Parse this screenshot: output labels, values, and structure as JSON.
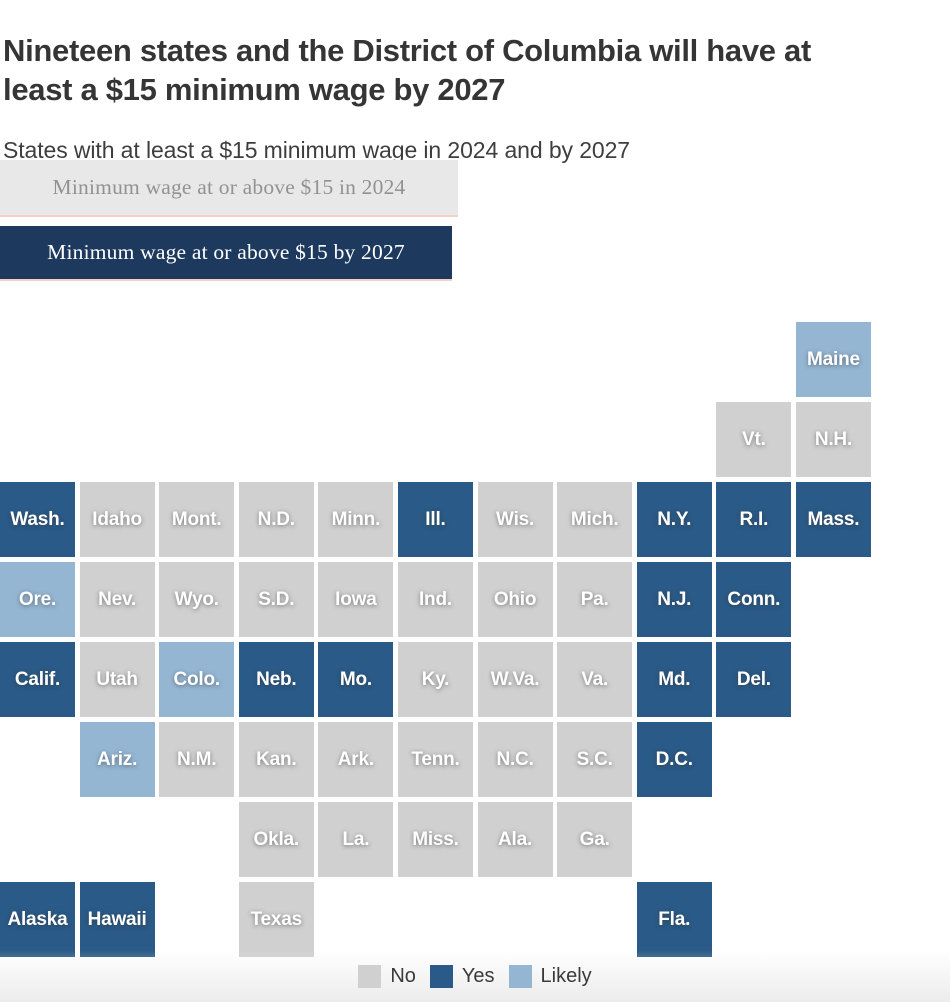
{
  "title": "Nineteen states and the District of Columbia will have at least a $15 minimum wage by 2027",
  "subtitle": "States with at least a $15 minimum wage in 2024 and by 2027",
  "toggles": [
    {
      "label": "Minimum wage at or above $15 in 2024",
      "state": "inactive"
    },
    {
      "label": "Minimum wage at or above $15 by 2027",
      "state": "active"
    }
  ],
  "colors": {
    "no": "#d0d0d0",
    "yes": "#2a5a87",
    "likely": "#94b6d3",
    "banner_active": "#1d3a5e",
    "banner_inactive": "#e8e8e8",
    "banner_underline": "#f4d0ca"
  },
  "legend": [
    {
      "label": "No",
      "status": "no"
    },
    {
      "label": "Yes",
      "status": "yes"
    },
    {
      "label": "Likely",
      "status": "likely"
    }
  ],
  "chart_data": {
    "type": "heatmap",
    "subtype": "state-tile-grid-map",
    "title": "Nineteen states and the District of Columbia will have at least a $15 minimum wage by 2027",
    "legend_position": "bottom-center",
    "status_values": [
      "no",
      "yes",
      "likely"
    ],
    "tiles": [
      {
        "label": "Maine",
        "col": 11,
        "row": 1,
        "status": "likely"
      },
      {
        "label": "Vt.",
        "col": 10,
        "row": 2,
        "status": "no"
      },
      {
        "label": "N.H.",
        "col": 11,
        "row": 2,
        "status": "no"
      },
      {
        "label": "Wash.",
        "col": 1,
        "row": 3,
        "status": "yes"
      },
      {
        "label": "Idaho",
        "col": 2,
        "row": 3,
        "status": "no"
      },
      {
        "label": "Mont.",
        "col": 3,
        "row": 3,
        "status": "no"
      },
      {
        "label": "N.D.",
        "col": 4,
        "row": 3,
        "status": "no"
      },
      {
        "label": "Minn.",
        "col": 5,
        "row": 3,
        "status": "no"
      },
      {
        "label": "Ill.",
        "col": 6,
        "row": 3,
        "status": "yes"
      },
      {
        "label": "Wis.",
        "col": 7,
        "row": 3,
        "status": "no"
      },
      {
        "label": "Mich.",
        "col": 8,
        "row": 3,
        "status": "no"
      },
      {
        "label": "N.Y.",
        "col": 9,
        "row": 3,
        "status": "yes"
      },
      {
        "label": "R.I.",
        "col": 10,
        "row": 3,
        "status": "yes"
      },
      {
        "label": "Mass.",
        "col": 11,
        "row": 3,
        "status": "yes"
      },
      {
        "label": "Ore.",
        "col": 1,
        "row": 4,
        "status": "likely"
      },
      {
        "label": "Nev.",
        "col": 2,
        "row": 4,
        "status": "no"
      },
      {
        "label": "Wyo.",
        "col": 3,
        "row": 4,
        "status": "no"
      },
      {
        "label": "S.D.",
        "col": 4,
        "row": 4,
        "status": "no"
      },
      {
        "label": "Iowa",
        "col": 5,
        "row": 4,
        "status": "no"
      },
      {
        "label": "Ind.",
        "col": 6,
        "row": 4,
        "status": "no"
      },
      {
        "label": "Ohio",
        "col": 7,
        "row": 4,
        "status": "no"
      },
      {
        "label": "Pa.",
        "col": 8,
        "row": 4,
        "status": "no"
      },
      {
        "label": "N.J.",
        "col": 9,
        "row": 4,
        "status": "yes"
      },
      {
        "label": "Conn.",
        "col": 10,
        "row": 4,
        "status": "yes"
      },
      {
        "label": "Calif.",
        "col": 1,
        "row": 5,
        "status": "yes"
      },
      {
        "label": "Utah",
        "col": 2,
        "row": 5,
        "status": "no"
      },
      {
        "label": "Colo.",
        "col": 3,
        "row": 5,
        "status": "likely"
      },
      {
        "label": "Neb.",
        "col": 4,
        "row": 5,
        "status": "yes"
      },
      {
        "label": "Mo.",
        "col": 5,
        "row": 5,
        "status": "yes"
      },
      {
        "label": "Ky.",
        "col": 6,
        "row": 5,
        "status": "no"
      },
      {
        "label": "W.Va.",
        "col": 7,
        "row": 5,
        "status": "no"
      },
      {
        "label": "Va.",
        "col": 8,
        "row": 5,
        "status": "no"
      },
      {
        "label": "Md.",
        "col": 9,
        "row": 5,
        "status": "yes"
      },
      {
        "label": "Del.",
        "col": 10,
        "row": 5,
        "status": "yes"
      },
      {
        "label": "Ariz.",
        "col": 2,
        "row": 6,
        "status": "likely"
      },
      {
        "label": "N.M.",
        "col": 3,
        "row": 6,
        "status": "no"
      },
      {
        "label": "Kan.",
        "col": 4,
        "row": 6,
        "status": "no"
      },
      {
        "label": "Ark.",
        "col": 5,
        "row": 6,
        "status": "no"
      },
      {
        "label": "Tenn.",
        "col": 6,
        "row": 6,
        "status": "no"
      },
      {
        "label": "N.C.",
        "col": 7,
        "row": 6,
        "status": "no"
      },
      {
        "label": "S.C.",
        "col": 8,
        "row": 6,
        "status": "no"
      },
      {
        "label": "D.C.",
        "col": 9,
        "row": 6,
        "status": "yes"
      },
      {
        "label": "Okla.",
        "col": 4,
        "row": 7,
        "status": "no"
      },
      {
        "label": "La.",
        "col": 5,
        "row": 7,
        "status": "no"
      },
      {
        "label": "Miss.",
        "col": 6,
        "row": 7,
        "status": "no"
      },
      {
        "label": "Ala.",
        "col": 7,
        "row": 7,
        "status": "no"
      },
      {
        "label": "Ga.",
        "col": 8,
        "row": 7,
        "status": "no"
      },
      {
        "label": "Alaska",
        "col": 1,
        "row": 8,
        "status": "yes"
      },
      {
        "label": "Hawaii",
        "col": 2,
        "row": 8,
        "status": "yes"
      },
      {
        "label": "Texas",
        "col": 4,
        "row": 8,
        "status": "no"
      },
      {
        "label": "Fla.",
        "col": 9,
        "row": 8,
        "status": "yes"
      }
    ]
  }
}
